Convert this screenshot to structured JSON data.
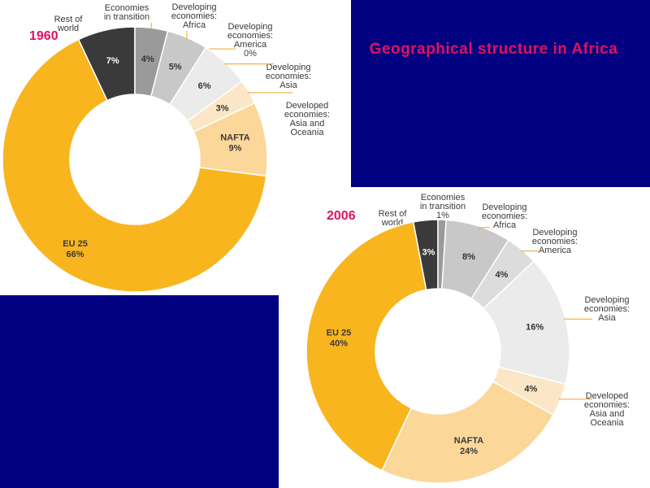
{
  "title": "Geographical structure in Africa",
  "chart_data": [
    {
      "type": "pie",
      "title": "1960",
      "labels": [
        [
          "Rest of",
          "world"
        ],
        [
          "Economies",
          "in transition"
        ],
        [
          "Developing",
          "economies:",
          "Africa"
        ],
        [
          "Developing",
          "economies:",
          "America",
          "0%"
        ],
        [
          "Developing",
          "economies:",
          "Asia"
        ],
        [
          "Developed",
          "economies:",
          "Asia and",
          "Oceania"
        ],
        [
          "NAFTA"
        ],
        [
          "EU 25"
        ]
      ],
      "slices": [
        {
          "name": "Rest of world",
          "value": 7,
          "label": "7%",
          "color": "#3a3a3a"
        },
        {
          "name": "Economies in transition",
          "value": 4,
          "label": "4%",
          "color": "#9a9a9a"
        },
        {
          "name": "Developing economies: Africa",
          "value": 5,
          "label": "5%",
          "color": "#c8c8c8"
        },
        {
          "name": "Developing economies: America",
          "value": 0,
          "label": "0%",
          "color": "#dcdcdc"
        },
        {
          "name": "Developing economies: Asia",
          "value": 6,
          "label": "6%",
          "color": "#ebebeb"
        },
        {
          "name": "Developed economies: Asia and Oceania",
          "value": 3,
          "label": "3%",
          "color": "#fbe6c6"
        },
        {
          "name": "NAFTA",
          "value": 9,
          "label": "9%",
          "color": "#fbd79a"
        },
        {
          "name": "EU 25",
          "value": 66,
          "label": "66%",
          "color": "#f8b51e"
        }
      ]
    },
    {
      "type": "pie",
      "title": "2006",
      "labels": [
        [
          "Rest of",
          "world"
        ],
        [
          "Economies",
          "in transition",
          "1%"
        ],
        [
          "Developing",
          "economies:",
          "Africa"
        ],
        [
          "Developing",
          "economies:",
          "America"
        ],
        [
          "Developing",
          "economies:",
          "Asia"
        ],
        [
          "Developed",
          "economies:",
          "Asia and",
          "Oceania"
        ],
        [
          "NAFTA"
        ],
        [
          "EU 25"
        ]
      ],
      "slices": [
        {
          "name": "Rest of world",
          "value": 3,
          "label": "3%",
          "color": "#3a3a3a"
        },
        {
          "name": "Economies in transition",
          "value": 1,
          "label": "1%",
          "color": "#9a9a9a"
        },
        {
          "name": "Developing economies: Africa",
          "value": 8,
          "label": "8%",
          "color": "#c8c8c8"
        },
        {
          "name": "Developing economies: America",
          "value": 4,
          "label": "4%",
          "color": "#dcdcdc"
        },
        {
          "name": "Developing economies: Asia",
          "value": 16,
          "label": "16%",
          "color": "#ebebeb"
        },
        {
          "name": "Developed economies: Asia and Oceania",
          "value": 4,
          "label": "4%",
          "color": "#fbe6c6"
        },
        {
          "name": "NAFTA",
          "value": 24,
          "label": "24%",
          "color": "#fbd79a"
        },
        {
          "name": "EU 25",
          "value": 40,
          "label": "40%",
          "color": "#f8b51e"
        }
      ]
    }
  ]
}
